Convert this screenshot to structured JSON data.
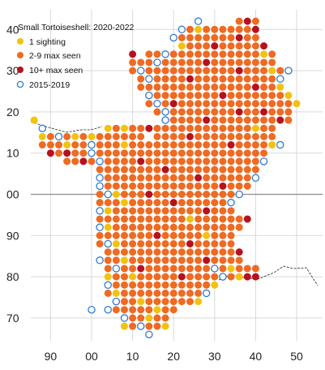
{
  "title": "Small Tortoiseshell:  2020-2022",
  "legend": [
    {
      "label": "1 sighting",
      "color": "#f2c20f",
      "style": "filled"
    },
    {
      "label": "2-9 max seen",
      "color": "#ef6a22",
      "style": "filled"
    },
    {
      "label": "10+ max seen",
      "color": "#b8101e",
      "style": "filled"
    },
    {
      "label": "2015-2019",
      "color": "#2e7bd1",
      "style": "ring"
    }
  ],
  "x_ticks": [
    "90",
    "00",
    "10",
    "20",
    "30",
    "40",
    "50"
  ],
  "y_ticks": [
    "40",
    "30",
    "20",
    "10",
    "00",
    "90",
    "80",
    "70"
  ],
  "colors": {
    "one": "#f2c20f",
    "few": "#ef6a22",
    "many": "#b8101e",
    "ring": "#2e7bd1",
    "grid": "#d9d9d9"
  },
  "chart_data": {
    "type": "scatter",
    "x_axis_ticks": [
      -10,
      0,
      10,
      20,
      30,
      40,
      50
    ],
    "y_axis_ticks": [
      40,
      30,
      20,
      10,
      0,
      -10,
      -20,
      -30
    ],
    "xlim": [
      -14,
      52
    ],
    "ylim": [
      -35,
      44
    ],
    "grid": true,
    "legend_position": "top-left",
    "cell_size": 2,
    "row_x_start": {
      "42": 36,
      "40": 24,
      "38": 22,
      "36": 24,
      "34": 14,
      "32": 10,
      "30": 10,
      "28": 12,
      "26": 12,
      "24": 14,
      "22": 14,
      "20": 16,
      "18": 18,
      "16": 16,
      "14": 16,
      "12": 14,
      "10": 12,
      "8": 2,
      "6": 2,
      "4": 2,
      "2": 2,
      "0": 2,
      "-2": 2,
      "-4": 2,
      "-6": 2,
      "-8": 2,
      "-10": 2,
      "-12": 2,
      "-14": 4,
      "-16": 4,
      "-18": 4,
      "-20": 4,
      "-22": 4,
      "-24": 4,
      "-26": 6,
      "-28": 6,
      "-30": 8,
      "-32": 10
    },
    "series": [
      {
        "name": "1 sighting",
        "symbol": "filled",
        "points": [
          [
            -14,
            18
          ],
          [
            -12,
            14
          ],
          [
            -8,
            14
          ],
          [
            -4,
            14
          ],
          [
            0,
            14
          ],
          [
            4,
            16
          ],
          [
            8,
            16
          ],
          [
            -6,
            12
          ],
          [
            0,
            12
          ],
          [
            8,
            12
          ],
          [
            2,
            4
          ],
          [
            6,
            0
          ],
          [
            4,
            -4
          ],
          [
            8,
            -2
          ],
          [
            4,
            -8
          ],
          [
            6,
            -12
          ],
          [
            8,
            -16
          ],
          [
            10,
            -20
          ],
          [
            4,
            -20
          ],
          [
            6,
            -24
          ],
          [
            12,
            -26
          ],
          [
            16,
            -28
          ],
          [
            8,
            -32
          ],
          [
            14,
            -30
          ],
          [
            18,
            -32
          ],
          [
            24,
            -6
          ],
          [
            28,
            -10
          ],
          [
            34,
            -18
          ],
          [
            36,
            -20
          ],
          [
            30,
            -22
          ],
          [
            26,
            -26
          ],
          [
            42,
            34
          ],
          [
            44,
            30
          ],
          [
            46,
            26
          ],
          [
            48,
            24
          ],
          [
            50,
            22
          ],
          [
            40,
            16
          ],
          [
            44,
            12
          ],
          [
            26,
            40
          ],
          [
            22,
            36
          ]
        ]
      },
      {
        "name": "10+ max seen",
        "symbol": "filled",
        "points": [
          [
            38,
            42
          ],
          [
            40,
            40
          ],
          [
            36,
            38
          ],
          [
            42,
            36
          ],
          [
            28,
            32
          ],
          [
            36,
            30
          ],
          [
            24,
            28
          ],
          [
            40,
            26
          ],
          [
            32,
            24
          ],
          [
            20,
            22
          ],
          [
            36,
            20
          ],
          [
            28,
            18
          ],
          [
            14,
            16
          ],
          [
            24,
            14
          ],
          [
            34,
            12
          ],
          [
            -10,
            10
          ],
          [
            -6,
            10
          ],
          [
            -2,
            8
          ],
          [
            12,
            8
          ],
          [
            18,
            6
          ],
          [
            26,
            4
          ],
          [
            32,
            2
          ],
          [
            14,
            0
          ],
          [
            20,
            -2
          ],
          [
            28,
            -4
          ],
          [
            38,
            -6
          ],
          [
            16,
            -10
          ],
          [
            24,
            -12
          ],
          [
            36,
            -14
          ],
          [
            28,
            -16
          ],
          [
            38,
            -20
          ],
          [
            40,
            -20
          ],
          [
            22,
            -20
          ],
          [
            12,
            -18
          ],
          [
            10,
            34
          ],
          [
            30,
            36
          ],
          [
            46,
            18
          ],
          [
            42,
            20
          ]
        ]
      },
      {
        "name": "2015-2019",
        "symbol": "ring",
        "points": [
          [
            26,
            42
          ],
          [
            22,
            40
          ],
          [
            20,
            38
          ],
          [
            18,
            34
          ],
          [
            16,
            32
          ],
          [
            12,
            30
          ],
          [
            14,
            28
          ],
          [
            14,
            24
          ],
          [
            16,
            22
          ],
          [
            18,
            20
          ],
          [
            18,
            18
          ],
          [
            -12,
            16
          ],
          [
            -8,
            14
          ],
          [
            0,
            12
          ],
          [
            0,
            10
          ],
          [
            2,
            8
          ],
          [
            2,
            4
          ],
          [
            2,
            2
          ],
          [
            4,
            0
          ],
          [
            2,
            -4
          ],
          [
            2,
            -8
          ],
          [
            4,
            -12
          ],
          [
            2,
            -16
          ],
          [
            6,
            -18
          ],
          [
            4,
            -22
          ],
          [
            6,
            -26
          ],
          [
            4,
            -28
          ],
          [
            8,
            -30
          ],
          [
            0,
            -28
          ],
          [
            12,
            -32
          ],
          [
            14,
            -34
          ],
          [
            30,
            -18
          ],
          [
            32,
            -20
          ],
          [
            28,
            -24
          ],
          [
            46,
            12
          ],
          [
            42,
            8
          ],
          [
            40,
            4
          ],
          [
            36,
            0
          ],
          [
            34,
            -2
          ],
          [
            46,
            28
          ],
          [
            48,
            30
          ]
        ]
      }
    ]
  }
}
